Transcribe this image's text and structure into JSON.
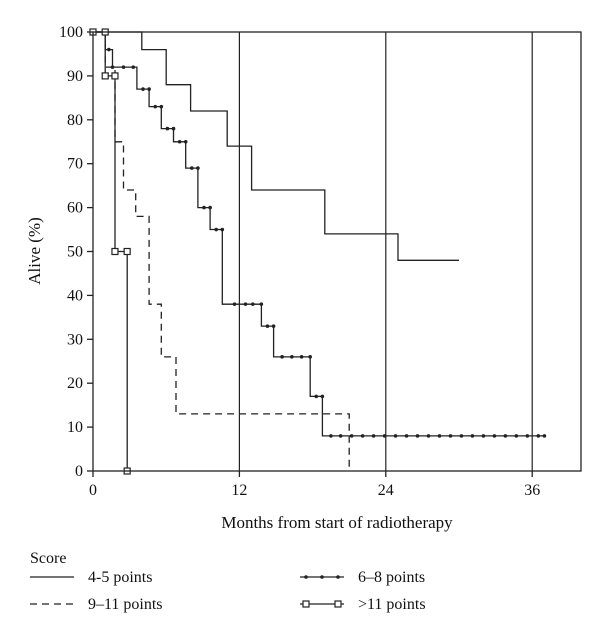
{
  "chart_data": {
    "type": "line",
    "subtype": "kaplan-meier step curves",
    "xlabel": "Months from start of radiotherapy",
    "ylabel": "Alive (%)",
    "xlim": [
      0,
      40
    ],
    "ylim": [
      0,
      100
    ],
    "x_ticks": [
      0,
      12,
      24,
      36
    ],
    "y_ticks": [
      0,
      10,
      20,
      30,
      40,
      50,
      60,
      70,
      80,
      90,
      100
    ],
    "vertical_reference_lines": [
      12,
      24,
      36
    ],
    "legend_title": "Score",
    "legend_position": "bottom",
    "series": [
      {
        "name": "4-5 points",
        "style": "solid",
        "marker": "none",
        "points": [
          [
            0,
            100
          ],
          [
            4,
            100
          ],
          [
            4,
            96
          ],
          [
            6,
            96
          ],
          [
            6,
            88
          ],
          [
            8,
            88
          ],
          [
            8,
            82
          ],
          [
            11,
            82
          ],
          [
            11,
            74
          ],
          [
            13,
            74
          ],
          [
            13,
            64
          ],
          [
            19,
            64
          ],
          [
            19,
            54
          ],
          [
            25,
            54
          ],
          [
            25,
            48
          ],
          [
            30,
            48
          ]
        ]
      },
      {
        "name": "9–11 points",
        "style": "dashed",
        "marker": "none",
        "points": [
          [
            0,
            100
          ],
          [
            1,
            100
          ],
          [
            1,
            92
          ],
          [
            1.8,
            92
          ],
          [
            1.8,
            75
          ],
          [
            2.5,
            75
          ],
          [
            2.5,
            64
          ],
          [
            3.5,
            64
          ],
          [
            3.5,
            58
          ],
          [
            4.6,
            58
          ],
          [
            4.6,
            38
          ],
          [
            5.6,
            38
          ],
          [
            5.6,
            26
          ],
          [
            6.8,
            26
          ],
          [
            6.8,
            13
          ],
          [
            21,
            13
          ],
          [
            21,
            0
          ]
        ]
      },
      {
        "name": "6–8 points",
        "style": "solid",
        "marker": "dot",
        "points": [
          [
            0,
            100
          ],
          [
            1,
            100
          ],
          [
            1,
            96
          ],
          [
            1.6,
            96
          ],
          [
            1.6,
            92
          ],
          [
            3.6,
            92
          ],
          [
            3.6,
            87
          ],
          [
            4.6,
            87
          ],
          [
            4.6,
            83
          ],
          [
            5.6,
            83
          ],
          [
            5.6,
            78
          ],
          [
            6.6,
            78
          ],
          [
            6.6,
            75
          ],
          [
            7.6,
            75
          ],
          [
            7.6,
            69
          ],
          [
            8.6,
            69
          ],
          [
            8.6,
            60
          ],
          [
            9.6,
            60
          ],
          [
            9.6,
            55
          ],
          [
            10.6,
            55
          ],
          [
            10.6,
            38
          ],
          [
            13.8,
            38
          ],
          [
            13.8,
            33
          ],
          [
            14.8,
            33
          ],
          [
            14.8,
            26
          ],
          [
            17.8,
            26
          ],
          [
            17.8,
            17
          ],
          [
            18.8,
            17
          ],
          [
            18.8,
            8
          ],
          [
            37,
            8
          ]
        ],
        "marker_points": [
          [
            1.3,
            96
          ],
          [
            1.6,
            92
          ],
          [
            2.5,
            92
          ],
          [
            3.3,
            92
          ],
          [
            4.1,
            87
          ],
          [
            4.6,
            87
          ],
          [
            5.1,
            83
          ],
          [
            5.6,
            83
          ],
          [
            6.1,
            78
          ],
          [
            6.6,
            78
          ],
          [
            7.1,
            75
          ],
          [
            7.6,
            75
          ],
          [
            8.1,
            69
          ],
          [
            8.6,
            69
          ],
          [
            9.1,
            60
          ],
          [
            9.6,
            60
          ],
          [
            10.1,
            55
          ],
          [
            10.6,
            55
          ],
          [
            11.6,
            38
          ],
          [
            12.5,
            38
          ],
          [
            13.1,
            38
          ],
          [
            13.8,
            38
          ],
          [
            14.3,
            33
          ],
          [
            14.8,
            33
          ],
          [
            15.5,
            26
          ],
          [
            16.3,
            26
          ],
          [
            17.1,
            26
          ],
          [
            17.8,
            26
          ],
          [
            18.3,
            17
          ],
          [
            18.8,
            17
          ],
          [
            19.5,
            8
          ],
          [
            20.3,
            8
          ],
          [
            21.2,
            8
          ],
          [
            22.1,
            8
          ],
          [
            23,
            8
          ],
          [
            23.9,
            8
          ],
          [
            24.8,
            8
          ],
          [
            25.7,
            8
          ],
          [
            26.6,
            8
          ],
          [
            27.5,
            8
          ],
          [
            28.4,
            8
          ],
          [
            29.3,
            8
          ],
          [
            30.2,
            8
          ],
          [
            31.1,
            8
          ],
          [
            32,
            8
          ],
          [
            32.9,
            8
          ],
          [
            33.8,
            8
          ],
          [
            34.7,
            8
          ],
          [
            35.6,
            8
          ],
          [
            36.5,
            8
          ],
          [
            37,
            8
          ]
        ]
      },
      {
        "name": ">11 points",
        "style": "solid",
        "marker": "square",
        "points": [
          [
            0,
            100
          ],
          [
            1,
            100
          ],
          [
            1,
            90
          ],
          [
            1.8,
            90
          ],
          [
            1.8,
            50
          ],
          [
            2.8,
            50
          ],
          [
            2.8,
            0
          ]
        ],
        "marker_points": [
          [
            0,
            100
          ],
          [
            1,
            100
          ],
          [
            1,
            90
          ],
          [
            1.8,
            90
          ],
          [
            1.8,
            50
          ],
          [
            2.8,
            50
          ],
          [
            2.8,
            0
          ]
        ]
      }
    ]
  }
}
